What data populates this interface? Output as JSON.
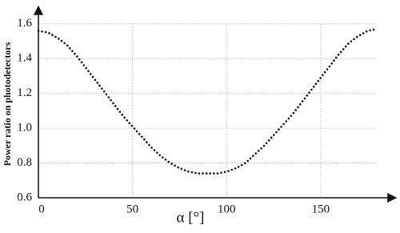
{
  "chart_data": {
    "type": "line",
    "xlabel": "α [°]",
    "ylabel": "Power ratio on photodetectors",
    "x": [
      0,
      5,
      10,
      15,
      20,
      25,
      30,
      35,
      40,
      45,
      50,
      55,
      60,
      65,
      70,
      75,
      80,
      85,
      90,
      95,
      100,
      105,
      110,
      115,
      120,
      125,
      130,
      135,
      140,
      145,
      150,
      155,
      160,
      165,
      170,
      175,
      180
    ],
    "values": [
      1.56,
      1.55,
      1.52,
      1.48,
      1.42,
      1.35,
      1.28,
      1.21,
      1.14,
      1.07,
      1.01,
      0.95,
      0.89,
      0.84,
      0.8,
      0.77,
      0.75,
      0.74,
      0.74,
      0.74,
      0.75,
      0.77,
      0.8,
      0.85,
      0.9,
      0.96,
      1.02,
      1.08,
      1.15,
      1.22,
      1.29,
      1.36,
      1.43,
      1.49,
      1.53,
      1.56,
      1.57
    ],
    "color": "#111111",
    "xlim": [
      0,
      190
    ],
    "ylim": [
      0.6,
      1.7
    ],
    "xticks": [
      0,
      50,
      100,
      150
    ],
    "yticks": [
      0.6,
      0.8,
      {
        "value": 1,
        "label": "1.0"
      },
      1.2,
      1.4,
      1.6
    ],
    "grid": true
  }
}
